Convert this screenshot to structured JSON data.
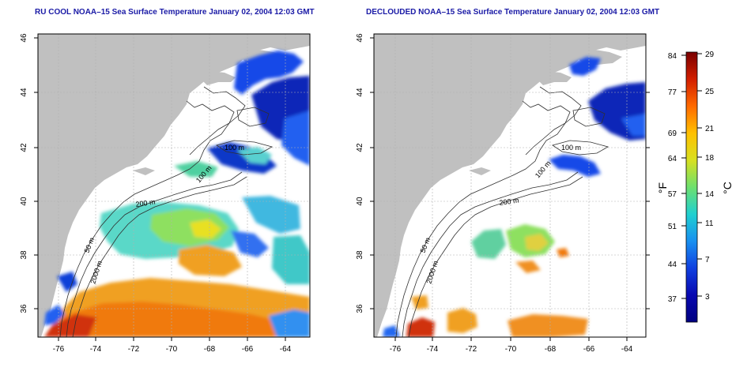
{
  "left_panel": {
    "title": "RU COOL NOAA–15 Sea Surface Temperature January 02, 2004 12:03 GMT",
    "contour_labels": [
      "50 m",
      "100 m",
      "100 m",
      "200 m",
      "2000 m"
    ]
  },
  "right_panel": {
    "title": "DECLOUDED NOAA–15 Sea Surface Temperature January 02, 2004 12:03 GMT",
    "contour_labels": [
      "50 m",
      "100 m",
      "100 m",
      "200 m",
      "2000 m"
    ]
  },
  "axes": {
    "x_ticks": [
      "-76",
      "-74",
      "-72",
      "-70",
      "-68",
      "-66",
      "-64"
    ],
    "y_ticks": [
      "36",
      "38",
      "40",
      "42",
      "44",
      "46"
    ]
  },
  "colorbar": {
    "fahrenheit_label": "°F",
    "celsius_label": "°C",
    "fahrenheit_ticks": [
      "84",
      "77",
      "69",
      "64",
      "57",
      "51",
      "44",
      "37"
    ],
    "celsius_ticks": [
      "29",
      "25",
      "21",
      "18",
      "14",
      "11",
      "7",
      "3"
    ],
    "gradient_colors": [
      "#7a0000",
      "#d21e00",
      "#ff6a00",
      "#ffc000",
      "#d8e020",
      "#6ee06e",
      "#20d0d0",
      "#1890f0",
      "#1040e0",
      "#0808b0",
      "#000080"
    ]
  },
  "colors": {
    "land": "#c0c0c0",
    "ocean_no_data": "#ffffff",
    "title_text": "#1a1aa6",
    "grid": "#b0b0b0"
  }
}
